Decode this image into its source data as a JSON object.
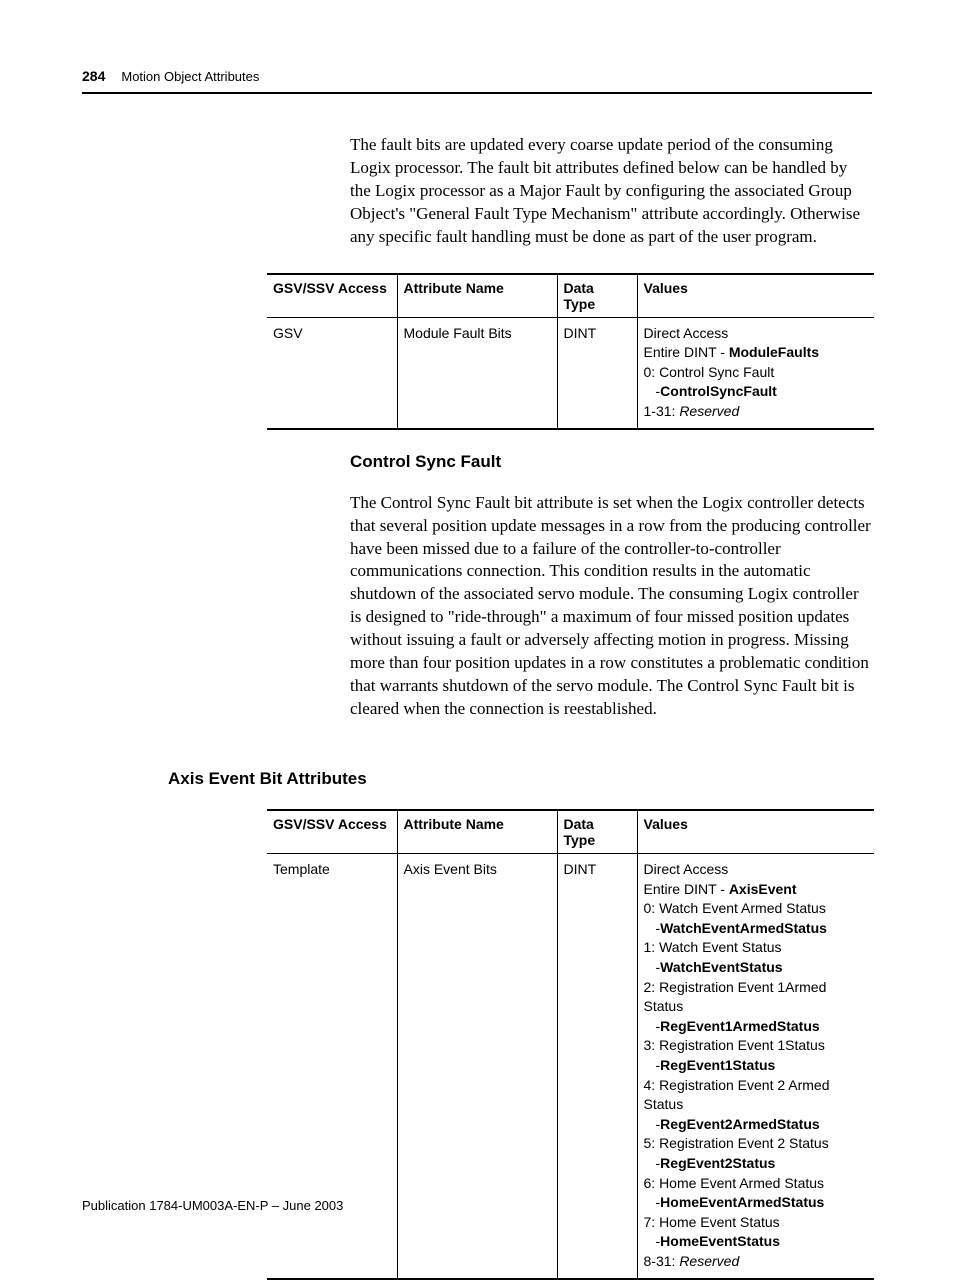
{
  "header": {
    "page_number": "284",
    "chapter_title": "Motion Object Attributes"
  },
  "paragraphs": {
    "intro": "The fault bits are updated every coarse update period of the consuming Logix processor. The fault bit attributes defined below can be handled by the Logix processor as a Major Fault by configuring the associated Group Object's \"General Fault Type Mechanism\" attribute accordingly. Otherwise any specific fault handling must be done as part of the user program.",
    "control_sync": "The Control Sync Fault bit attribute is set when the Logix controller detects that several position update messages in a row from the producing controller have been missed due to a failure of the controller-to-controller communications connection. This condition results in the automatic shutdown of the associated servo module. The consuming Logix controller is designed to \"ride-through\" a maximum of four missed position updates without issuing a fault or adversely affecting motion in progress. Missing more than four position updates in a row constitutes a problematic condition that warrants shutdown of the servo module. The Control Sync Fault bit is cleared when the connection is reestablished."
  },
  "headings": {
    "control_sync": "Control Sync Fault",
    "axis_event": "Axis Event Bit Attributes"
  },
  "table_headers": {
    "col1": "GSV/SSV Access",
    "col2": "Attribute Name",
    "col3": "Data Type",
    "col4": "Values"
  },
  "table1": {
    "access": "GSV",
    "attribute": "Module Fault Bits",
    "datatype": "DINT",
    "values": {
      "line1": "Direct Access",
      "line2_prefix": "Entire DINT - ",
      "line2_bold": "ModuleFaults",
      "line3": "0: Control Sync Fault",
      "line4_dash": "-",
      "line4_bold": "ControlSyncFault",
      "line5_prefix": "1-31: ",
      "line5_italic": "Reserved"
    }
  },
  "table2": {
    "access": "Template",
    "attribute": "Axis Event Bits",
    "datatype": "DINT",
    "values": {
      "line1": "Direct Access",
      "line2_prefix": "Entire DINT - ",
      "line2_bold": "AxisEvent",
      "bits": [
        {
          "num": "0: Watch Event Armed Status",
          "tag": "WatchEventArmedStatus"
        },
        {
          "num": "1: Watch Event Status",
          "tag": "WatchEventStatus"
        },
        {
          "num": "2: Registration Event 1Armed Status",
          "tag": "RegEvent1ArmedStatus"
        },
        {
          "num": "3: Registration Event 1Status",
          "tag": "RegEvent1Status"
        },
        {
          "num": "4: Registration Event 2 Armed Status",
          "tag": "RegEvent2ArmedStatus"
        },
        {
          "num": "5: Registration Event 2 Status",
          "tag": "RegEvent2Status"
        },
        {
          "num": "6: Home Event Armed Status",
          "tag": "HomeEventArmedStatus"
        },
        {
          "num": "7: Home Event Status",
          "tag": "HomeEventStatus"
        }
      ],
      "reserved_prefix": "8-31: ",
      "reserved_italic": "Reserved"
    }
  },
  "footer": {
    "pub": "Publication 1784-UM003A-EN-P – June 2003"
  },
  "colors": {
    "text": "#000000",
    "background": "#ffffff",
    "rule": "#000000"
  },
  "fonts": {
    "body_family": "Garamond",
    "body_size_pt": 12,
    "heading_family": "Arial",
    "heading_size_pt": 13,
    "table_family": "Helvetica Condensed",
    "table_size_pt": 10.5
  }
}
